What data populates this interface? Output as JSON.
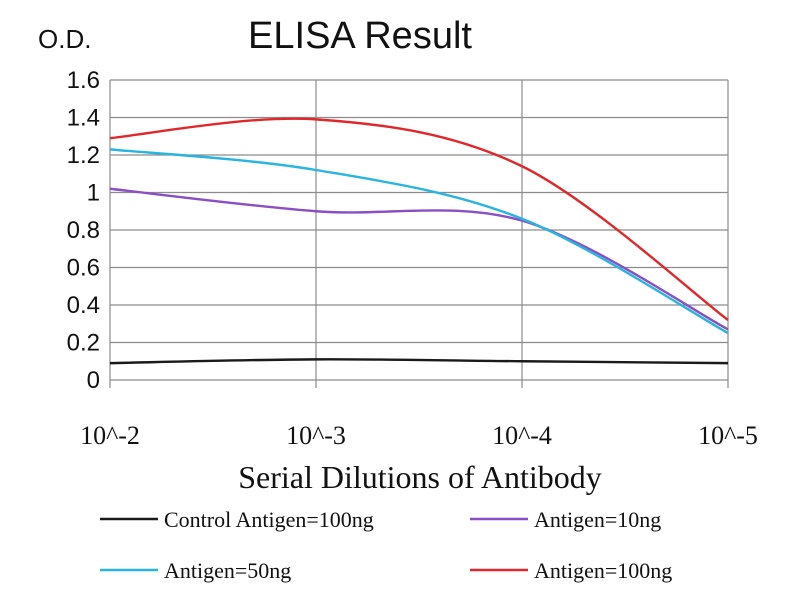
{
  "chart_data": {
    "type": "line",
    "title": "ELISA Result",
    "ylabel": "O.D.",
    "xlabel": "Serial Dilutions of Antibody",
    "categories": [
      "10^-2",
      "10^-3",
      "10^-4",
      "10^-5"
    ],
    "ylim": [
      0,
      1.6
    ],
    "yticks": [
      0,
      0.2,
      0.4,
      0.6,
      0.8,
      1,
      1.2,
      1.4,
      1.6
    ],
    "grid": true,
    "legend_position": "bottom",
    "series": [
      {
        "name": "Control Antigen=100ng",
        "color": "#1a1a1a",
        "values": [
          0.09,
          0.11,
          0.1,
          0.09
        ]
      },
      {
        "name": "Antigen=10ng",
        "color": "#8a4fc4",
        "values": [
          1.02,
          0.9,
          0.85,
          0.27
        ]
      },
      {
        "name": "Antigen=50ng",
        "color": "#2ab4e0",
        "values": [
          1.23,
          1.12,
          0.86,
          0.25
        ]
      },
      {
        "name": "Antigen=100ng",
        "color": "#e0282c",
        "values": [
          1.29,
          1.39,
          1.14,
          0.32
        ]
      }
    ]
  }
}
